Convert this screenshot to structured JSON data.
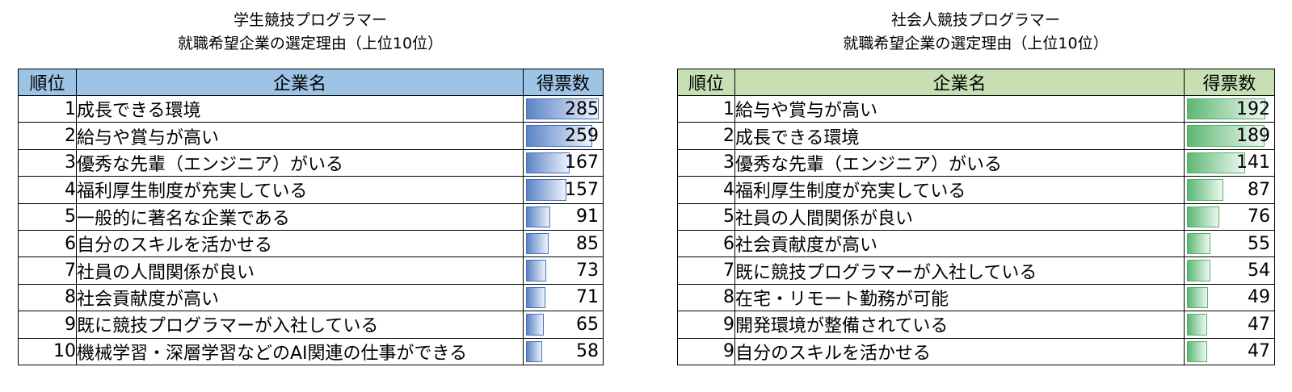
{
  "chart_data": [
    {
      "type": "table",
      "title_line1": "学生競技プログラマー",
      "title_line2": "就職希望企業の選定理由（上位10位）",
      "columns": [
        "順位",
        "企業名",
        "得票数"
      ],
      "header_color": "#9dc3e6",
      "bar_color": "#4472c4",
      "votes_max": 285,
      "rows": [
        {
          "rank": "1",
          "reason": "成長できる環境",
          "votes": 285
        },
        {
          "rank": "2",
          "reason": "給与や賞与が高い",
          "votes": 259
        },
        {
          "rank": "3",
          "reason": "優秀な先輩（エンジニア）がいる",
          "votes": 167
        },
        {
          "rank": "4",
          "reason": "福利厚生制度が充実している",
          "votes": 157
        },
        {
          "rank": "5",
          "reason": "一般的に著名な企業である",
          "votes": 91
        },
        {
          "rank": "6",
          "reason": "自分のスキルを活かせる",
          "votes": 85
        },
        {
          "rank": "7",
          "reason": "社員の人間関係が良い",
          "votes": 73
        },
        {
          "rank": "8",
          "reason": "社会貢献度が高い",
          "votes": 71
        },
        {
          "rank": "9",
          "reason": "既に競技プログラマーが入社している",
          "votes": 65
        },
        {
          "rank": "10",
          "reason": "機械学習・深層学習などのAI関連の仕事ができる",
          "votes": 58
        }
      ]
    },
    {
      "type": "table",
      "title_line1": "社会人競技プログラマー",
      "title_line2": "就職希望企業の選定理由（上位10位）",
      "columns": [
        "順位",
        "企業名",
        "得票数"
      ],
      "header_color": "#c6e0b4",
      "bar_color": "#57b06d",
      "votes_max": 192,
      "rows": [
        {
          "rank": "1",
          "reason": "給与や賞与が高い",
          "votes": 192
        },
        {
          "rank": "2",
          "reason": "成長できる環境",
          "votes": 189
        },
        {
          "rank": "3",
          "reason": "優秀な先輩（エンジニア）がいる",
          "votes": 141
        },
        {
          "rank": "4",
          "reason": "福利厚生制度が充実している",
          "votes": 87
        },
        {
          "rank": "5",
          "reason": "社員の人間関係が良い",
          "votes": 76
        },
        {
          "rank": "6",
          "reason": "社会貢献度が高い",
          "votes": 55
        },
        {
          "rank": "7",
          "reason": "既に競技プログラマーが入社している",
          "votes": 54
        },
        {
          "rank": "8",
          "reason": "在宅・リモート勤務が可能",
          "votes": 49
        },
        {
          "rank": "9",
          "reason": "開発環境が整備されている",
          "votes": 47
        },
        {
          "rank": "9",
          "reason": "自分のスキルを活かせる",
          "votes": 47
        }
      ]
    }
  ]
}
